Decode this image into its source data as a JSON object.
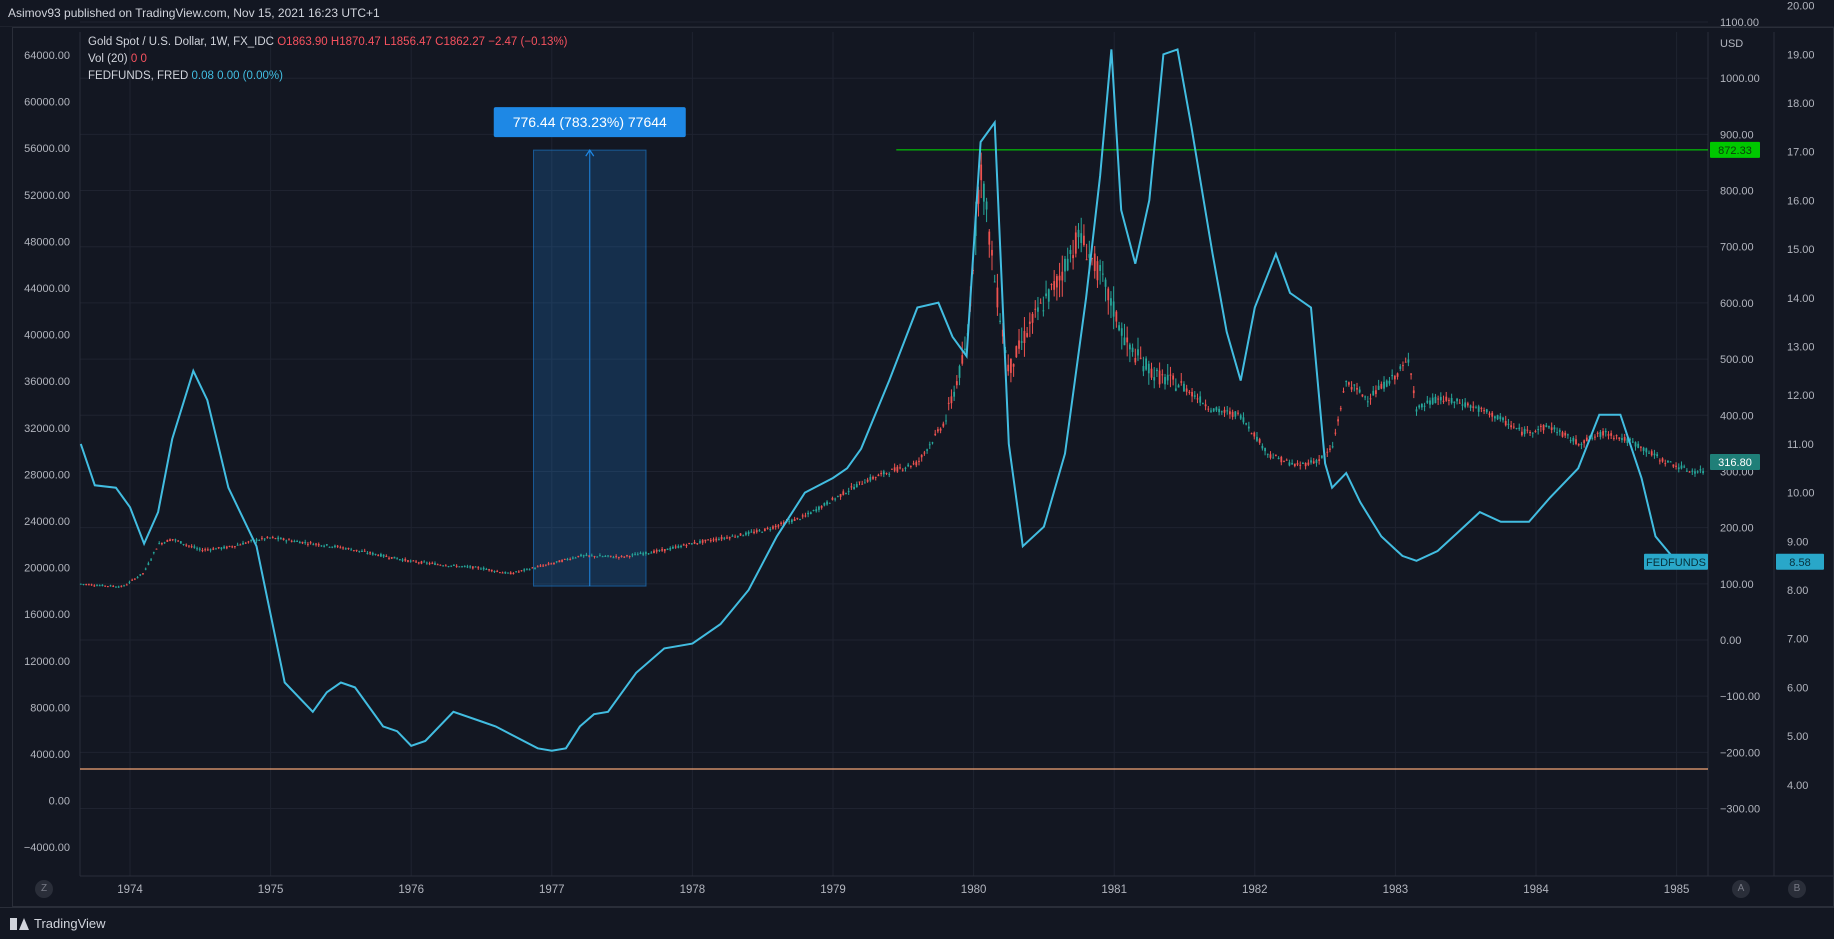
{
  "header": {
    "publish_info": "Asimov93 published on TradingView.com, Nov 15, 2021 16:23 UTC+1"
  },
  "legend": {
    "symbol": "Gold Spot / U.S. Dollar, 1W, FX_IDC",
    "open": "O1863.90",
    "high": "H1870.47",
    "low": "L1856.47",
    "close": "C1862.27",
    "change": "−2.47 (−0.13%)",
    "vol_label": "Vol (20)",
    "vol_v1": "0",
    "vol_v2": "0",
    "fed_label": "FEDFUNDS, FRED",
    "fed_v1": "0.08",
    "fed_v2": "0.00 (0.00%)"
  },
  "chart_data": {
    "type": "line",
    "x_ticks": [
      "1974",
      "1975",
      "1976",
      "1977",
      "1978",
      "1979",
      "1980",
      "1981",
      "1982",
      "1983",
      "1984",
      "1985"
    ],
    "left_axis_ticks": [
      "64000.00",
      "60000.00",
      "56000.00",
      "52000.00",
      "48000.00",
      "44000.00",
      "40000.00",
      "36000.00",
      "32000.00",
      "28000.00",
      "24000.00",
      "20000.00",
      "16000.00",
      "12000.00",
      "8000.00",
      "4000.00",
      "0.00",
      "−4000.00"
    ],
    "price_axis": {
      "unit": "USD",
      "ticks": [
        "1100.00",
        "1000.00",
        "900.00",
        "800.00",
        "700.00",
        "600.00",
        "500.00",
        "400.00",
        "300.00",
        "200.00",
        "100.00",
        "0.00",
        "−100.00",
        "−200.00",
        "−300.00"
      ]
    },
    "fed_axis_ticks": [
      "20.00",
      "19.00",
      "18.00",
      "17.00",
      "16.00",
      "15.00",
      "14.00",
      "13.00",
      "12.00",
      "11.00",
      "10.00",
      "9.00",
      "8.00",
      "7.00",
      "6.00",
      "5.00",
      "4.00"
    ],
    "gold_series": {
      "x": [
        1973.65,
        1973.8,
        1973.95,
        1974.1,
        1974.2,
        1974.3,
        1974.5,
        1974.7,
        1974.9,
        1975.0,
        1975.2,
        1975.5,
        1975.8,
        1976.0,
        1976.3,
        1976.5,
        1976.7,
        1976.9,
        1977.0,
        1977.2,
        1977.5,
        1977.8,
        1978.0,
        1978.3,
        1978.5,
        1978.8,
        1979.0,
        1979.2,
        1979.4,
        1979.6,
        1979.8,
        1979.95,
        1980.05,
        1980.15,
        1980.25,
        1980.4,
        1980.6,
        1980.75,
        1980.9,
        1981.1,
        1981.3,
        1981.5,
        1981.7,
        1981.9,
        1982.1,
        1982.3,
        1982.45,
        1982.55,
        1982.65,
        1982.8,
        1983.0,
        1983.1,
        1983.15,
        1983.3,
        1983.5,
        1983.7,
        1983.9,
        1984.1,
        1984.3,
        1984.5,
        1984.7,
        1984.9,
        1985.1,
        1985.2
      ],
      "values": [
        100,
        97,
        95,
        120,
        170,
        180,
        160,
        165,
        178,
        182,
        175,
        165,
        150,
        140,
        132,
        128,
        118,
        130,
        136,
        150,
        148,
        160,
        172,
        185,
        195,
        220,
        250,
        280,
        300,
        315,
        390,
        520,
        850,
        640,
        480,
        560,
        640,
        720,
        650,
        520,
        470,
        450,
        410,
        400,
        330,
        310,
        320,
        340,
        460,
        430,
        470,
        500,
        410,
        430,
        420,
        400,
        370,
        380,
        350,
        370,
        350,
        320,
        300,
        300
      ]
    },
    "fedfunds_series": {
      "x": [
        1973.65,
        1973.75,
        1973.9,
        1974.0,
        1974.1,
        1974.2,
        1974.3,
        1974.45,
        1974.55,
        1974.7,
        1974.9,
        1975.0,
        1975.1,
        1975.3,
        1975.4,
        1975.5,
        1975.6,
        1975.8,
        1975.9,
        1976.0,
        1976.1,
        1976.3,
        1976.5,
        1976.6,
        1976.9,
        1977.0,
        1977.1,
        1977.2,
        1977.3,
        1977.4,
        1977.6,
        1977.8,
        1978.0,
        1978.2,
        1978.4,
        1978.6,
        1978.8,
        1979.0,
        1979.1,
        1979.2,
        1979.4,
        1979.6,
        1979.75,
        1979.85,
        1979.95,
        1980.05,
        1980.15,
        1980.25,
        1980.35,
        1980.5,
        1980.65,
        1980.8,
        1980.9,
        1980.98,
        1981.05,
        1981.15,
        1981.25,
        1981.35,
        1981.45,
        1981.55,
        1981.7,
        1981.8,
        1981.9,
        1982.0,
        1982.15,
        1982.25,
        1982.4,
        1982.5,
        1982.55,
        1982.65,
        1982.75,
        1982.9,
        1983.05,
        1983.15,
        1983.3,
        1983.45,
        1983.6,
        1983.75,
        1983.95,
        1984.1,
        1984.3,
        1984.45,
        1984.6,
        1984.75,
        1984.85,
        1985.0,
        1985.15
      ],
      "values": [
        11.0,
        10.15,
        10.1,
        9.7,
        8.95,
        9.6,
        11.1,
        12.5,
        11.9,
        10.1,
        8.9,
        7.5,
        6.1,
        5.5,
        5.9,
        6.1,
        6.0,
        5.2,
        5.1,
        4.8,
        4.9,
        5.5,
        5.3,
        5.2,
        4.75,
        4.7,
        4.75,
        5.2,
        5.45,
        5.5,
        6.3,
        6.8,
        6.9,
        7.3,
        8.0,
        9.1,
        10.0,
        10.3,
        10.5,
        10.9,
        12.3,
        13.8,
        13.9,
        13.2,
        12.8,
        17.2,
        17.6,
        11.0,
        8.9,
        9.3,
        10.8,
        14.0,
        16.5,
        19.1,
        15.8,
        14.7,
        16.0,
        19.0,
        19.1,
        17.5,
        14.9,
        13.3,
        12.3,
        13.8,
        14.9,
        14.1,
        13.8,
        10.6,
        10.1,
        10.4,
        9.8,
        9.1,
        8.7,
        8.6,
        8.8,
        9.2,
        9.6,
        9.4,
        9.4,
        9.9,
        10.5,
        11.6,
        11.6,
        10.3,
        9.1,
        8.58,
        8.45
      ]
    },
    "measure_label": "776.44 (783.23%) 77644",
    "green_line_label": "872.33",
    "gold_last_label": "316.80",
    "fed_last_name": "FEDFUNDS",
    "fed_last_label": "8.58",
    "grid": true
  },
  "colors": {
    "bg": "#131722",
    "gold_up": "#26a69a",
    "gold_down": "#ef5350",
    "fedfunds": "#42bde1",
    "green_line": "#00e600",
    "orange_line": "#f2a476",
    "measure": "#1e88e5"
  },
  "footer": {
    "brand": "TradingView",
    "btn_z": "Z",
    "btn_a": "A",
    "btn_b": "B"
  }
}
